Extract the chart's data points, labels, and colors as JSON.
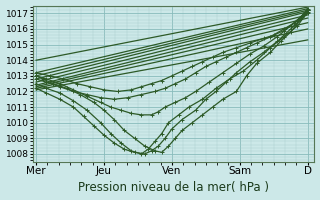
{
  "xlabel": "Pression niveau de la mer( hPa )",
  "bg_color": "#cce8e8",
  "grid_major_color": "#88bbbb",
  "grid_minor_color": "#aacccc",
  "line_color": "#2d5a27",
  "ylim": [
    1007.5,
    1017.5
  ],
  "yticks": [
    1008,
    1009,
    1010,
    1011,
    1012,
    1013,
    1014,
    1015,
    1016,
    1017
  ],
  "xlim": [
    0,
    4.15
  ],
  "xtick_labels": [
    "Mer",
    "Jeu",
    "Ven",
    "Sam",
    "D"
  ],
  "xtick_pos": [
    0.05,
    1.05,
    2.05,
    3.05,
    4.05
  ],
  "straight_lines": [
    [
      1014.0,
      1017.4
    ],
    [
      1013.2,
      1017.3
    ],
    [
      1013.0,
      1017.2
    ],
    [
      1012.8,
      1017.1
    ],
    [
      1012.6,
      1016.9
    ],
    [
      1012.4,
      1016.7
    ],
    [
      1012.3,
      1016.4
    ],
    [
      1012.2,
      1016.0
    ],
    [
      1012.1,
      1015.3
    ]
  ],
  "curved_lines": [
    {
      "x": [
        0.05,
        0.15,
        0.3,
        0.5,
        0.7,
        0.9,
        1.05,
        1.2,
        1.35,
        1.5,
        1.65,
        1.8,
        1.9,
        2.0,
        2.1,
        2.2,
        2.35,
        2.5,
        2.65,
        2.8,
        3.0,
        3.15,
        3.3,
        3.5,
        3.65,
        3.8,
        4.05
      ],
      "y": [
        1013.0,
        1012.8,
        1012.5,
        1012.2,
        1011.8,
        1011.3,
        1010.8,
        1010.2,
        1009.5,
        1009.0,
        1008.5,
        1008.2,
        1008.1,
        1008.5,
        1009.0,
        1009.5,
        1010.0,
        1010.5,
        1011.0,
        1011.5,
        1012.0,
        1013.0,
        1013.8,
        1014.5,
        1015.2,
        1015.8,
        1017.2
      ]
    },
    {
      "x": [
        0.05,
        0.2,
        0.4,
        0.6,
        0.8,
        1.0,
        1.15,
        1.3,
        1.45,
        1.6,
        1.7,
        1.8,
        1.9,
        2.0,
        2.15,
        2.3,
        2.5,
        2.7,
        2.9,
        3.1,
        3.3,
        3.5,
        3.7,
        3.9,
        4.05
      ],
      "y": [
        1012.5,
        1012.2,
        1011.9,
        1011.4,
        1010.8,
        1010.0,
        1009.3,
        1008.7,
        1008.2,
        1008.0,
        1008.3,
        1008.8,
        1009.3,
        1010.0,
        1010.5,
        1011.0,
        1011.5,
        1012.2,
        1012.8,
        1013.3,
        1014.0,
        1014.8,
        1015.5,
        1016.2,
        1017.1
      ]
    },
    {
      "x": [
        0.05,
        0.2,
        0.4,
        0.6,
        0.75,
        0.9,
        1.05,
        1.2,
        1.35,
        1.5,
        1.65,
        1.75,
        1.85,
        1.95,
        2.05,
        2.2,
        2.4,
        2.55,
        2.7,
        2.85,
        3.0,
        3.2,
        3.4,
        3.6,
        3.8,
        4.05
      ],
      "y": [
        1012.2,
        1011.9,
        1011.5,
        1011.0,
        1010.4,
        1009.8,
        1009.2,
        1008.7,
        1008.3,
        1008.1,
        1008.0,
        1008.2,
        1008.5,
        1009.0,
        1009.6,
        1010.2,
        1010.8,
        1011.5,
        1012.0,
        1012.6,
        1013.2,
        1013.9,
        1014.5,
        1015.2,
        1016.0,
        1017.0
      ]
    },
    {
      "x": [
        0.05,
        0.2,
        0.4,
        0.6,
        0.8,
        1.0,
        1.15,
        1.3,
        1.45,
        1.6,
        1.75,
        1.85,
        1.95,
        2.1,
        2.25,
        2.4,
        2.6,
        2.8,
        3.0,
        3.2,
        3.4,
        3.6,
        3.8,
        4.0,
        4.05
      ],
      "y": [
        1013.0,
        1012.8,
        1012.5,
        1012.1,
        1011.7,
        1011.3,
        1011.0,
        1010.8,
        1010.6,
        1010.5,
        1010.5,
        1010.7,
        1011.0,
        1011.3,
        1011.6,
        1012.0,
        1012.6,
        1013.2,
        1013.8,
        1014.4,
        1014.9,
        1015.5,
        1016.2,
        1016.9,
        1017.2
      ]
    },
    {
      "x": [
        0.05,
        0.2,
        0.4,
        0.6,
        0.8,
        1.0,
        1.2,
        1.4,
        1.6,
        1.8,
        1.95,
        2.1,
        2.25,
        2.4,
        2.55,
        2.7,
        2.85,
        3.0,
        3.15,
        3.3,
        3.5,
        3.7,
        3.9,
        4.05
      ],
      "y": [
        1012.8,
        1012.6,
        1012.3,
        1012.0,
        1011.8,
        1011.6,
        1011.5,
        1011.6,
        1011.8,
        1012.0,
        1012.2,
        1012.5,
        1012.8,
        1013.2,
        1013.6,
        1013.9,
        1014.2,
        1014.5,
        1014.8,
        1015.1,
        1015.5,
        1016.0,
        1016.5,
        1017.3
      ]
    },
    {
      "x": [
        0.05,
        0.25,
        0.45,
        0.65,
        0.85,
        1.05,
        1.25,
        1.45,
        1.6,
        1.75,
        1.9,
        2.05,
        2.2,
        2.35,
        2.5,
        2.65,
        2.8,
        3.0,
        3.2,
        3.4,
        3.55,
        3.7,
        3.85,
        4.05
      ],
      "y": [
        1013.2,
        1013.0,
        1012.8,
        1012.5,
        1012.3,
        1012.1,
        1012.0,
        1012.1,
        1012.3,
        1012.5,
        1012.7,
        1013.0,
        1013.3,
        1013.6,
        1013.9,
        1014.2,
        1014.5,
        1014.8,
        1015.1,
        1015.4,
        1015.6,
        1015.9,
        1016.4,
        1017.2
      ]
    }
  ],
  "marker": "+",
  "marker_size": 2.5,
  "line_width": 0.9,
  "xlabel_fontsize": 8.5
}
